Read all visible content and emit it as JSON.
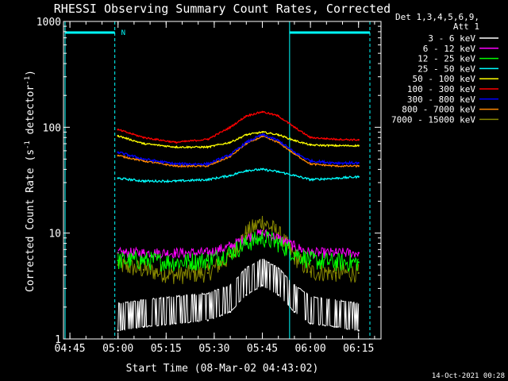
{
  "chart_data": {
    "type": "line",
    "title": "RHESSI Observing Summary Count Rates, Corrected",
    "xlabel": "Start Time (08-Mar-02 04:43:02)",
    "ylabel": "Corrected Count Rate (s-1 detector-1)",
    "ylabel_main": "Corrected Count Rate (s",
    "ylabel_sup1": "-1",
    "ylabel_mid": " detector",
    "ylabel_sup2": "-1",
    "ylabel_end": ")",
    "y_scale": "log",
    "ylim": [
      1,
      1000
    ],
    "xlim_minutes_after_0443": [
      0,
      99
    ],
    "x_tick_labels": [
      "04:45",
      "05:00",
      "05:15",
      "05:30",
      "05:45",
      "06:00",
      "06:15"
    ],
    "x_ticks_minutes_after_0443": [
      2,
      17,
      32,
      47,
      62,
      77,
      92
    ],
    "y_tick_labels": [
      "1",
      "10",
      "100",
      "1000"
    ],
    "y_ticks": [
      1,
      10,
      100,
      1000
    ],
    "legend_placement": "right",
    "legend_header": [
      "Det 1,3,4,5,6,9,",
      "Att 1"
    ],
    "night_label": "N",
    "timestamp": "14-Oct-2021 00:28",
    "x_minutes_after_0443": [
      17,
      25,
      35,
      45,
      52,
      57,
      62,
      67,
      72,
      77,
      85,
      92
    ],
    "series": [
      {
        "name": "3 - 6 keV",
        "color": "#ffffff",
        "values": [
          1.2,
          1.3,
          1.4,
          1.5,
          1.8,
          2.6,
          3.2,
          2.6,
          1.8,
          1.4,
          1.3,
          1.2
        ]
      },
      {
        "name": "6 - 12 keV",
        "color": "#ff00ff",
        "values": [
          6.5,
          6.5,
          6.5,
          6.5,
          7.5,
          9,
          10,
          9,
          7.5,
          6.5,
          6.5,
          6.5
        ]
      },
      {
        "name": "12 - 25 keV",
        "color": "#00ff00",
        "values": [
          5.5,
          5.5,
          5.3,
          5.5,
          6.5,
          8,
          9,
          8,
          6.5,
          5.5,
          5.3,
          5.3
        ]
      },
      {
        "name": "25 - 50 keV",
        "color": "#00ffff",
        "values": [
          33,
          31,
          31,
          32,
          35,
          39,
          40,
          38,
          35,
          32,
          33,
          34
        ]
      },
      {
        "name": "50 - 100 keV",
        "color": "#ffff00",
        "values": [
          83,
          70,
          65,
          65,
          72,
          85,
          90,
          85,
          75,
          68,
          67,
          67
        ]
      },
      {
        "name": "100 - 300 keV",
        "color": "#ff0000",
        "values": [
          95,
          80,
          72,
          77,
          100,
          128,
          140,
          128,
          100,
          80,
          77,
          76
        ]
      },
      {
        "name": "300 - 800 keV",
        "color": "#0000ff",
        "values": [
          58,
          50,
          45,
          45,
          55,
          72,
          85,
          75,
          58,
          48,
          46,
          46
        ]
      },
      {
        "name": "800 - 7000 keV",
        "color": "#ff8800",
        "values": [
          54,
          48,
          43,
          43,
          53,
          70,
          82,
          72,
          56,
          45,
          43,
          43
        ]
      },
      {
        "name": "7000 - 15000 keV",
        "color": "#888800",
        "values": [
          5,
          4.5,
          4,
          4.2,
          6,
          10,
          13,
          10,
          6,
          4.3,
          4.2,
          4.2
        ]
      }
    ]
  }
}
